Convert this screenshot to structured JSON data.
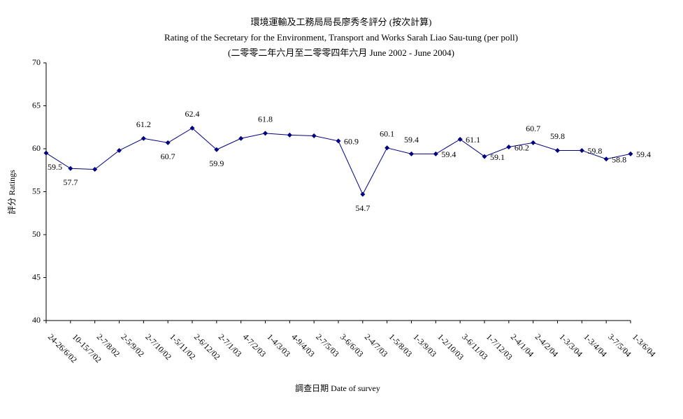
{
  "chart_data": {
    "type": "line",
    "title": "環境運輸及工務局局長廖秀冬評分 (按次計算)",
    "subtitle": "Rating of the Secretary for the Environment, Transport and Works Sarah Liao Sau-tung  (per poll)",
    "subtitle2": "(二零零二年六月至二零零四年六月 June 2002 - June 2004)",
    "x_label": "調查日期 Date of survey",
    "y_label": "評分 Ratings",
    "categories": [
      "24-26/6/02",
      "10-15/7/02",
      "2-7/8/02",
      "2-5/9/02",
      "2-7/10/02",
      "1-5/11/02",
      "2-6/12/02",
      "2-7/1/03",
      "4-7/2/03",
      "1-4/3/03",
      "4-9/4/03",
      "2-7/5/03",
      "3-6/6/03",
      "2-4/7/03",
      "1-5/8/03",
      "1-3/9/03",
      "1-2/10/03",
      "3-6/11/03",
      "1-7/12/03",
      "2-4/1/04",
      "2-4/2/04",
      "1-3/3/04",
      "1-3/4/04",
      "3-7/5/04",
      "1-3/6/04"
    ],
    "series": [
      {
        "name": "Ratings",
        "color": "#000080",
        "values": [
          59.5,
          57.7,
          57.6,
          59.8,
          61.2,
          60.7,
          62.4,
          59.9,
          61.2,
          61.8,
          61.6,
          61.5,
          60.9,
          54.7,
          60.1,
          59.4,
          59.4,
          61.1,
          59.1,
          60.2,
          60.7,
          59.8,
          59.8,
          58.8,
          59.4
        ],
        "value_labels": [
          "59.5",
          "57.7",
          null,
          null,
          "61.2",
          "60.7",
          "62.4",
          "59.9",
          null,
          "61.8",
          null,
          null,
          "60.9",
          "54.7",
          "60.1",
          "59.4",
          "59.4",
          "61.1",
          "59.1",
          "60.2",
          "60.7",
          "59.8",
          "59.8",
          "58.8",
          "59.4"
        ]
      }
    ],
    "ylim": [
      40,
      70
    ],
    "yticks": [
      40,
      45,
      50,
      55,
      60,
      65,
      70
    ],
    "grid": false
  }
}
